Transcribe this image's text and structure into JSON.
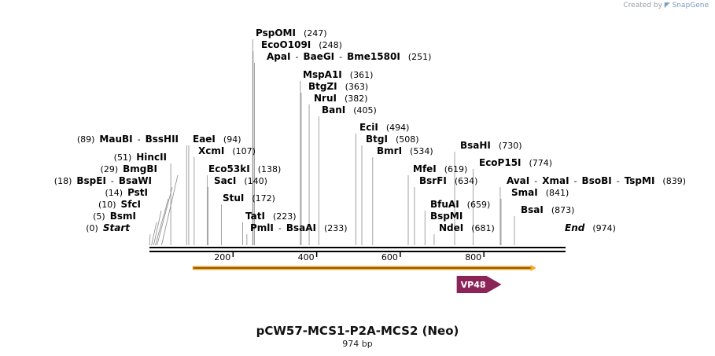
{
  "credit": {
    "prefix": "Created by",
    "brand": "SnapGene"
  },
  "map": {
    "title": "pCW57-MCS1-P2A-MCS2 (Neo)",
    "length_label": "974 bp",
    "length": 974,
    "ruler_ticks": [
      "200",
      "400",
      "600",
      "800"
    ],
    "labels": [
      {
        "id": "start",
        "parts": [
          {
            "t": "(0)",
            "k": "pos"
          },
          {
            "t": "Start",
            "k": "term"
          }
        ],
        "cut": 0
      },
      {
        "id": "bsmi",
        "parts": [
          {
            "t": "(5)",
            "k": "pos"
          },
          {
            "t": "BsmI",
            "k": "enz"
          }
        ],
        "cut": 5
      },
      {
        "id": "sfci",
        "parts": [
          {
            "t": "(10)",
            "k": "pos"
          },
          {
            "t": "SfcI",
            "k": "enz"
          }
        ],
        "cut": 10
      },
      {
        "id": "psti",
        "parts": [
          {
            "t": "(14)",
            "k": "pos"
          },
          {
            "t": "PstI",
            "k": "enz"
          }
        ],
        "cut": 14
      },
      {
        "id": "bspei",
        "parts": [
          {
            "t": "(18)",
            "k": "pos"
          },
          {
            "t": "BspEI",
            "k": "enz"
          },
          {
            "t": "-",
            "k": "sep"
          },
          {
            "t": "BsaWI",
            "k": "enz"
          }
        ],
        "cut": 18
      },
      {
        "id": "bmgbi",
        "parts": [
          {
            "t": "(29)",
            "k": "pos"
          },
          {
            "t": "BmgBI",
            "k": "enz"
          }
        ],
        "cut": 29
      },
      {
        "id": "hincii",
        "parts": [
          {
            "t": "(51)",
            "k": "pos"
          },
          {
            "t": "HincII",
            "k": "enz"
          }
        ],
        "cut": 51
      },
      {
        "id": "maubi",
        "parts": [
          {
            "t": "(89)",
            "k": "pos"
          },
          {
            "t": "MauBI",
            "k": "enz"
          },
          {
            "t": "-",
            "k": "sep"
          },
          {
            "t": "BssHII",
            "k": "enz"
          }
        ],
        "cut": 89
      },
      {
        "id": "eaei",
        "parts": [
          {
            "t": "EaeI",
            "k": "enz"
          },
          {
            "t": "(94)",
            "k": "pos"
          }
        ],
        "cut": 94
      },
      {
        "id": "xcmi",
        "parts": [
          {
            "t": "XcmI",
            "k": "enz"
          },
          {
            "t": "(107)",
            "k": "pos"
          }
        ],
        "cut": 107
      },
      {
        "id": "eco53ki",
        "parts": [
          {
            "t": "Eco53kI",
            "k": "enz"
          },
          {
            "t": "(138)",
            "k": "pos"
          }
        ],
        "cut": 138
      },
      {
        "id": "saci",
        "parts": [
          {
            "t": "SacI",
            "k": "enz"
          },
          {
            "t": "(140)",
            "k": "pos"
          }
        ],
        "cut": 140
      },
      {
        "id": "stui",
        "parts": [
          {
            "t": "StuI",
            "k": "enz"
          },
          {
            "t": "(172)",
            "k": "pos"
          }
        ],
        "cut": 172
      },
      {
        "id": "tati",
        "parts": [
          {
            "t": "TatI",
            "k": "enz"
          },
          {
            "t": "(223)",
            "k": "pos"
          }
        ],
        "cut": 223
      },
      {
        "id": "pmli",
        "parts": [
          {
            "t": "PmlI",
            "k": "enz"
          },
          {
            "t": "-",
            "k": "sep"
          },
          {
            "t": "BsaAI",
            "k": "enz"
          },
          {
            "t": "(233)",
            "k": "pos"
          }
        ],
        "cut": 233
      },
      {
        "id": "pspomi",
        "parts": [
          {
            "t": "PspOMI",
            "k": "enz"
          },
          {
            "t": "(247)",
            "k": "pos"
          }
        ],
        "cut": 247
      },
      {
        "id": "ecoo109i",
        "parts": [
          {
            "t": "EcoO109I",
            "k": "enz"
          },
          {
            "t": "(248)",
            "k": "pos"
          }
        ],
        "cut": 248
      },
      {
        "id": "apai",
        "parts": [
          {
            "t": "ApaI",
            "k": "enz"
          },
          {
            "t": "-",
            "k": "sep"
          },
          {
            "t": "BaeGI",
            "k": "enz"
          },
          {
            "t": "-",
            "k": "sep"
          },
          {
            "t": "Bme1580I",
            "k": "enz"
          },
          {
            "t": "(251)",
            "k": "pos"
          }
        ],
        "cut": 251
      },
      {
        "id": "mspa1i",
        "parts": [
          {
            "t": "MspA1I",
            "k": "enz"
          },
          {
            "t": "(361)",
            "k": "pos"
          }
        ],
        "cut": 361
      },
      {
        "id": "btgzi",
        "parts": [
          {
            "t": "BtgZI",
            "k": "enz"
          },
          {
            "t": "(363)",
            "k": "pos"
          }
        ],
        "cut": 363
      },
      {
        "id": "nrui",
        "parts": [
          {
            "t": "NruI",
            "k": "enz"
          },
          {
            "t": "(382)",
            "k": "pos"
          }
        ],
        "cut": 382
      },
      {
        "id": "bani",
        "parts": [
          {
            "t": "BanI",
            "k": "enz"
          },
          {
            "t": "(405)",
            "k": "pos"
          }
        ],
        "cut": 405
      },
      {
        "id": "ecii",
        "parts": [
          {
            "t": "EciI",
            "k": "enz"
          },
          {
            "t": "(494)",
            "k": "pos"
          }
        ],
        "cut": 494
      },
      {
        "id": "btgi",
        "parts": [
          {
            "t": "BtgI",
            "k": "enz"
          },
          {
            "t": "(508)",
            "k": "pos"
          }
        ],
        "cut": 508
      },
      {
        "id": "bmri",
        "parts": [
          {
            "t": "BmrI",
            "k": "enz"
          },
          {
            "t": "(534)",
            "k": "pos"
          }
        ],
        "cut": 534
      },
      {
        "id": "mfei",
        "parts": [
          {
            "t": "MfeI",
            "k": "enz"
          },
          {
            "t": "(619)",
            "k": "pos"
          }
        ],
        "cut": 619
      },
      {
        "id": "bsrfi",
        "parts": [
          {
            "t": "BsrFI",
            "k": "enz"
          },
          {
            "t": "(634)",
            "k": "pos"
          }
        ],
        "cut": 634
      },
      {
        "id": "bfuai",
        "parts": [
          {
            "t": "BfuAI",
            "k": "enz"
          },
          {
            "t": "(659)",
            "k": "pos"
          }
        ],
        "cut": 659
      },
      {
        "id": "bspmi",
        "parts": [
          {
            "t": "BspMI",
            "k": "enz"
          }
        ],
        "cut": 659
      },
      {
        "id": "ndei",
        "parts": [
          {
            "t": "NdeI",
            "k": "enz"
          },
          {
            "t": "(681)",
            "k": "pos"
          }
        ],
        "cut": 681
      },
      {
        "id": "bsahi",
        "parts": [
          {
            "t": "BsaHI",
            "k": "enz"
          },
          {
            "t": "(730)",
            "k": "pos"
          }
        ],
        "cut": 730
      },
      {
        "id": "ecop15i",
        "parts": [
          {
            "t": "EcoP15I",
            "k": "enz"
          },
          {
            "t": "(774)",
            "k": "pos"
          }
        ],
        "cut": 774
      },
      {
        "id": "avai",
        "parts": [
          {
            "t": "AvaI",
            "k": "enz"
          },
          {
            "t": "-",
            "k": "sep"
          },
          {
            "t": "XmaI",
            "k": "enz"
          },
          {
            "t": "-",
            "k": "sep"
          },
          {
            "t": "BsoBI",
            "k": "enz"
          },
          {
            "t": "-",
            "k": "sep"
          },
          {
            "t": "TspMI",
            "k": "enz"
          },
          {
            "t": "(839)",
            "k": "pos"
          }
        ],
        "cut": 839
      },
      {
        "id": "smai",
        "parts": [
          {
            "t": "SmaI",
            "k": "enz"
          },
          {
            "t": "(841)",
            "k": "pos"
          }
        ],
        "cut": 841
      },
      {
        "id": "bsai",
        "parts": [
          {
            "t": "BsaI",
            "k": "enz"
          },
          {
            "t": "(873)",
            "k": "pos"
          }
        ],
        "cut": 873
      },
      {
        "id": "end",
        "parts": [
          {
            "t": "End",
            "k": "term"
          },
          {
            "t": "(974)",
            "k": "pos"
          }
        ],
        "cut": 974
      }
    ],
    "features": [
      {
        "name": "orf",
        "label": "",
        "start": 103,
        "end": 925,
        "color": "#f5a623"
      },
      {
        "name": "vp48",
        "label": "VP48",
        "start": 735,
        "end": 842,
        "color": "#8b2558"
      }
    ]
  }
}
